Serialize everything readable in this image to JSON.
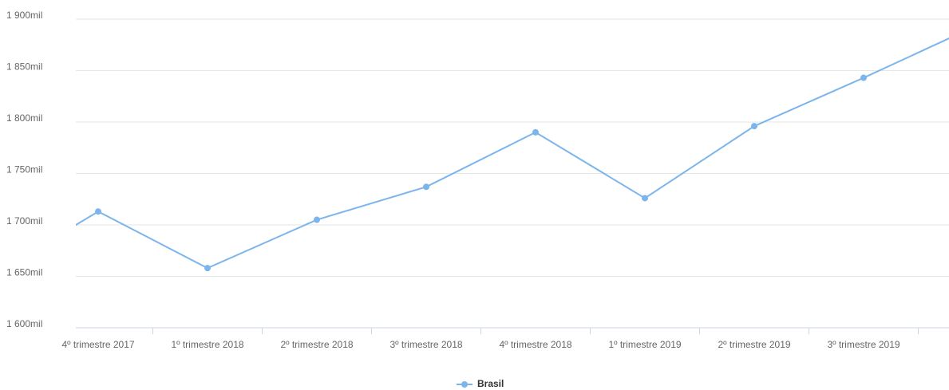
{
  "chart_data": {
    "type": "line",
    "categories": [
      null,
      "4º trimestre 2017",
      "1º trimestre 2018",
      "2º trimestre 2018",
      "3º trimestre 2018",
      "4º trimestre 2018",
      "1º trimestre 2019",
      "2º trimestre 2019",
      "3º trimestre 2019",
      null
    ],
    "series": [
      {
        "name": "Brasil",
        "color": "#7cb5ec",
        "values": [
          1649,
          1713,
          1658,
          1705,
          1737,
          1790,
          1726,
          1796,
          1843,
          1892
        ]
      }
    ],
    "ylim": [
      1600,
      1900
    ],
    "yticks": [
      {
        "value": 1600,
        "label": "1 600mil"
      },
      {
        "value": 1650,
        "label": "1 650mil"
      },
      {
        "value": 1700,
        "label": "1 700mil"
      },
      {
        "value": 1750,
        "label": "1 750mil"
      },
      {
        "value": 1800,
        "label": "1 800mil"
      },
      {
        "value": 1850,
        "label": "1 850mil"
      },
      {
        "value": 1900,
        "label": "1 900mil"
      }
    ],
    "grid": true
  }
}
